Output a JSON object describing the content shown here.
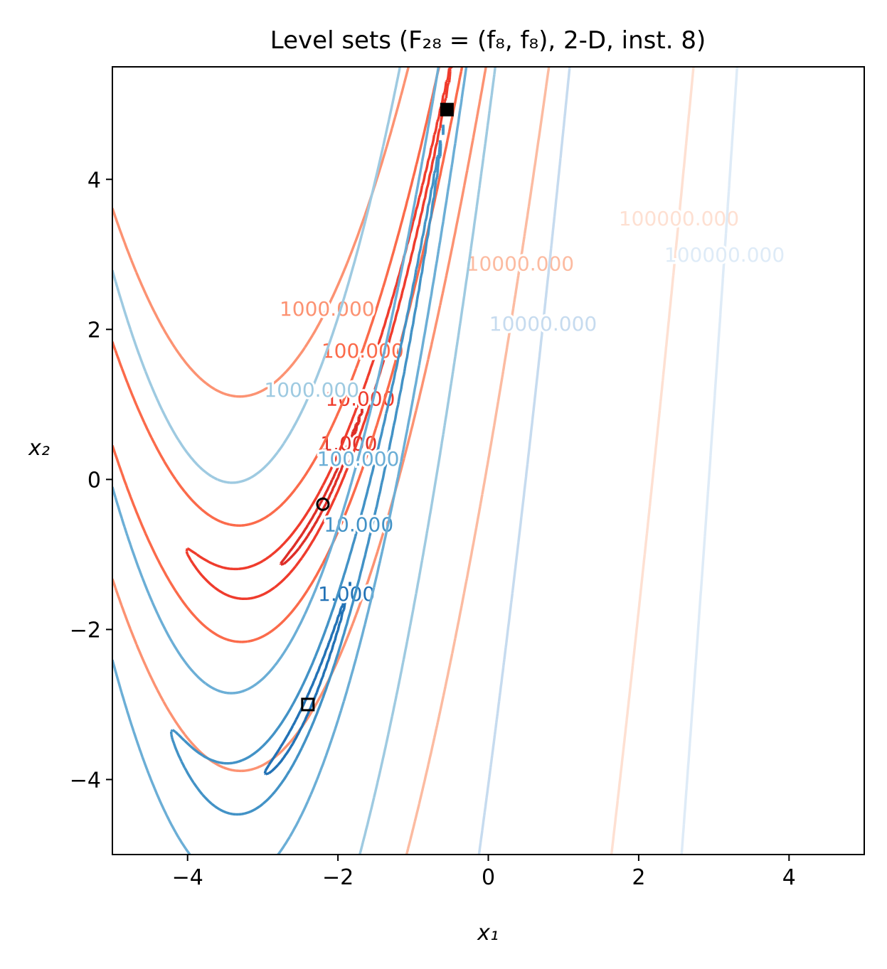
{
  "chart_data": {
    "type": "contour",
    "title": "Level sets (F₂₈ = (f₈, f₈), 2-D, inst. 8)",
    "x_label": "x₁",
    "y_label": "x₂",
    "xlim": [
      -5,
      5
    ],
    "ylim": [
      -5,
      5.5
    ],
    "xticks": [
      {
        "value": -4,
        "label": "−4"
      },
      {
        "value": -2,
        "label": "−2"
      },
      0,
      2,
      4
    ],
    "yticks": [
      {
        "value": -4,
        "label": "−4"
      },
      {
        "value": -2,
        "label": "−2"
      },
      0,
      2,
      4
    ],
    "functions": [
      {
        "colors": [
          "#de2d26",
          "#ef3b2c",
          "#fb6a4a",
          "#fc9272",
          "#fcbba1",
          "#fee0d2"
        ],
        "levels": [
          {
            "value": 1,
            "label": "1.000"
          },
          {
            "value": 10,
            "label": "10.000"
          },
          {
            "value": 100,
            "label": "100.000"
          },
          {
            "value": 1000,
            "label": "1000.000"
          },
          {
            "value": 10000,
            "label": "10000.000"
          },
          {
            "value": 100000,
            "label": "100000.000"
          }
        ]
      },
      {
        "colors": [
          "#2171b5",
          "#4292c6",
          "#6baed6",
          "#9ecae1",
          "#c6dbef",
          "#deebf7"
        ],
        "levels": [
          {
            "value": 1,
            "label": "1.000"
          },
          {
            "value": 10,
            "label": "10.000"
          },
          {
            "value": 100,
            "label": "100.000"
          },
          {
            "value": 1000,
            "label": "1000.000"
          },
          {
            "value": 10000,
            "label": "10000.000"
          },
          {
            "value": 100000,
            "label": "100000.000"
          }
        ]
      }
    ],
    "points": [
      {
        "x": -2.2,
        "y": -0.33,
        "marker": "circle"
      },
      {
        "x": -2.4,
        "y": -3.0,
        "marker": "square"
      },
      {
        "x": -0.55,
        "y": 4.93,
        "marker": "filled-square"
      }
    ]
  }
}
